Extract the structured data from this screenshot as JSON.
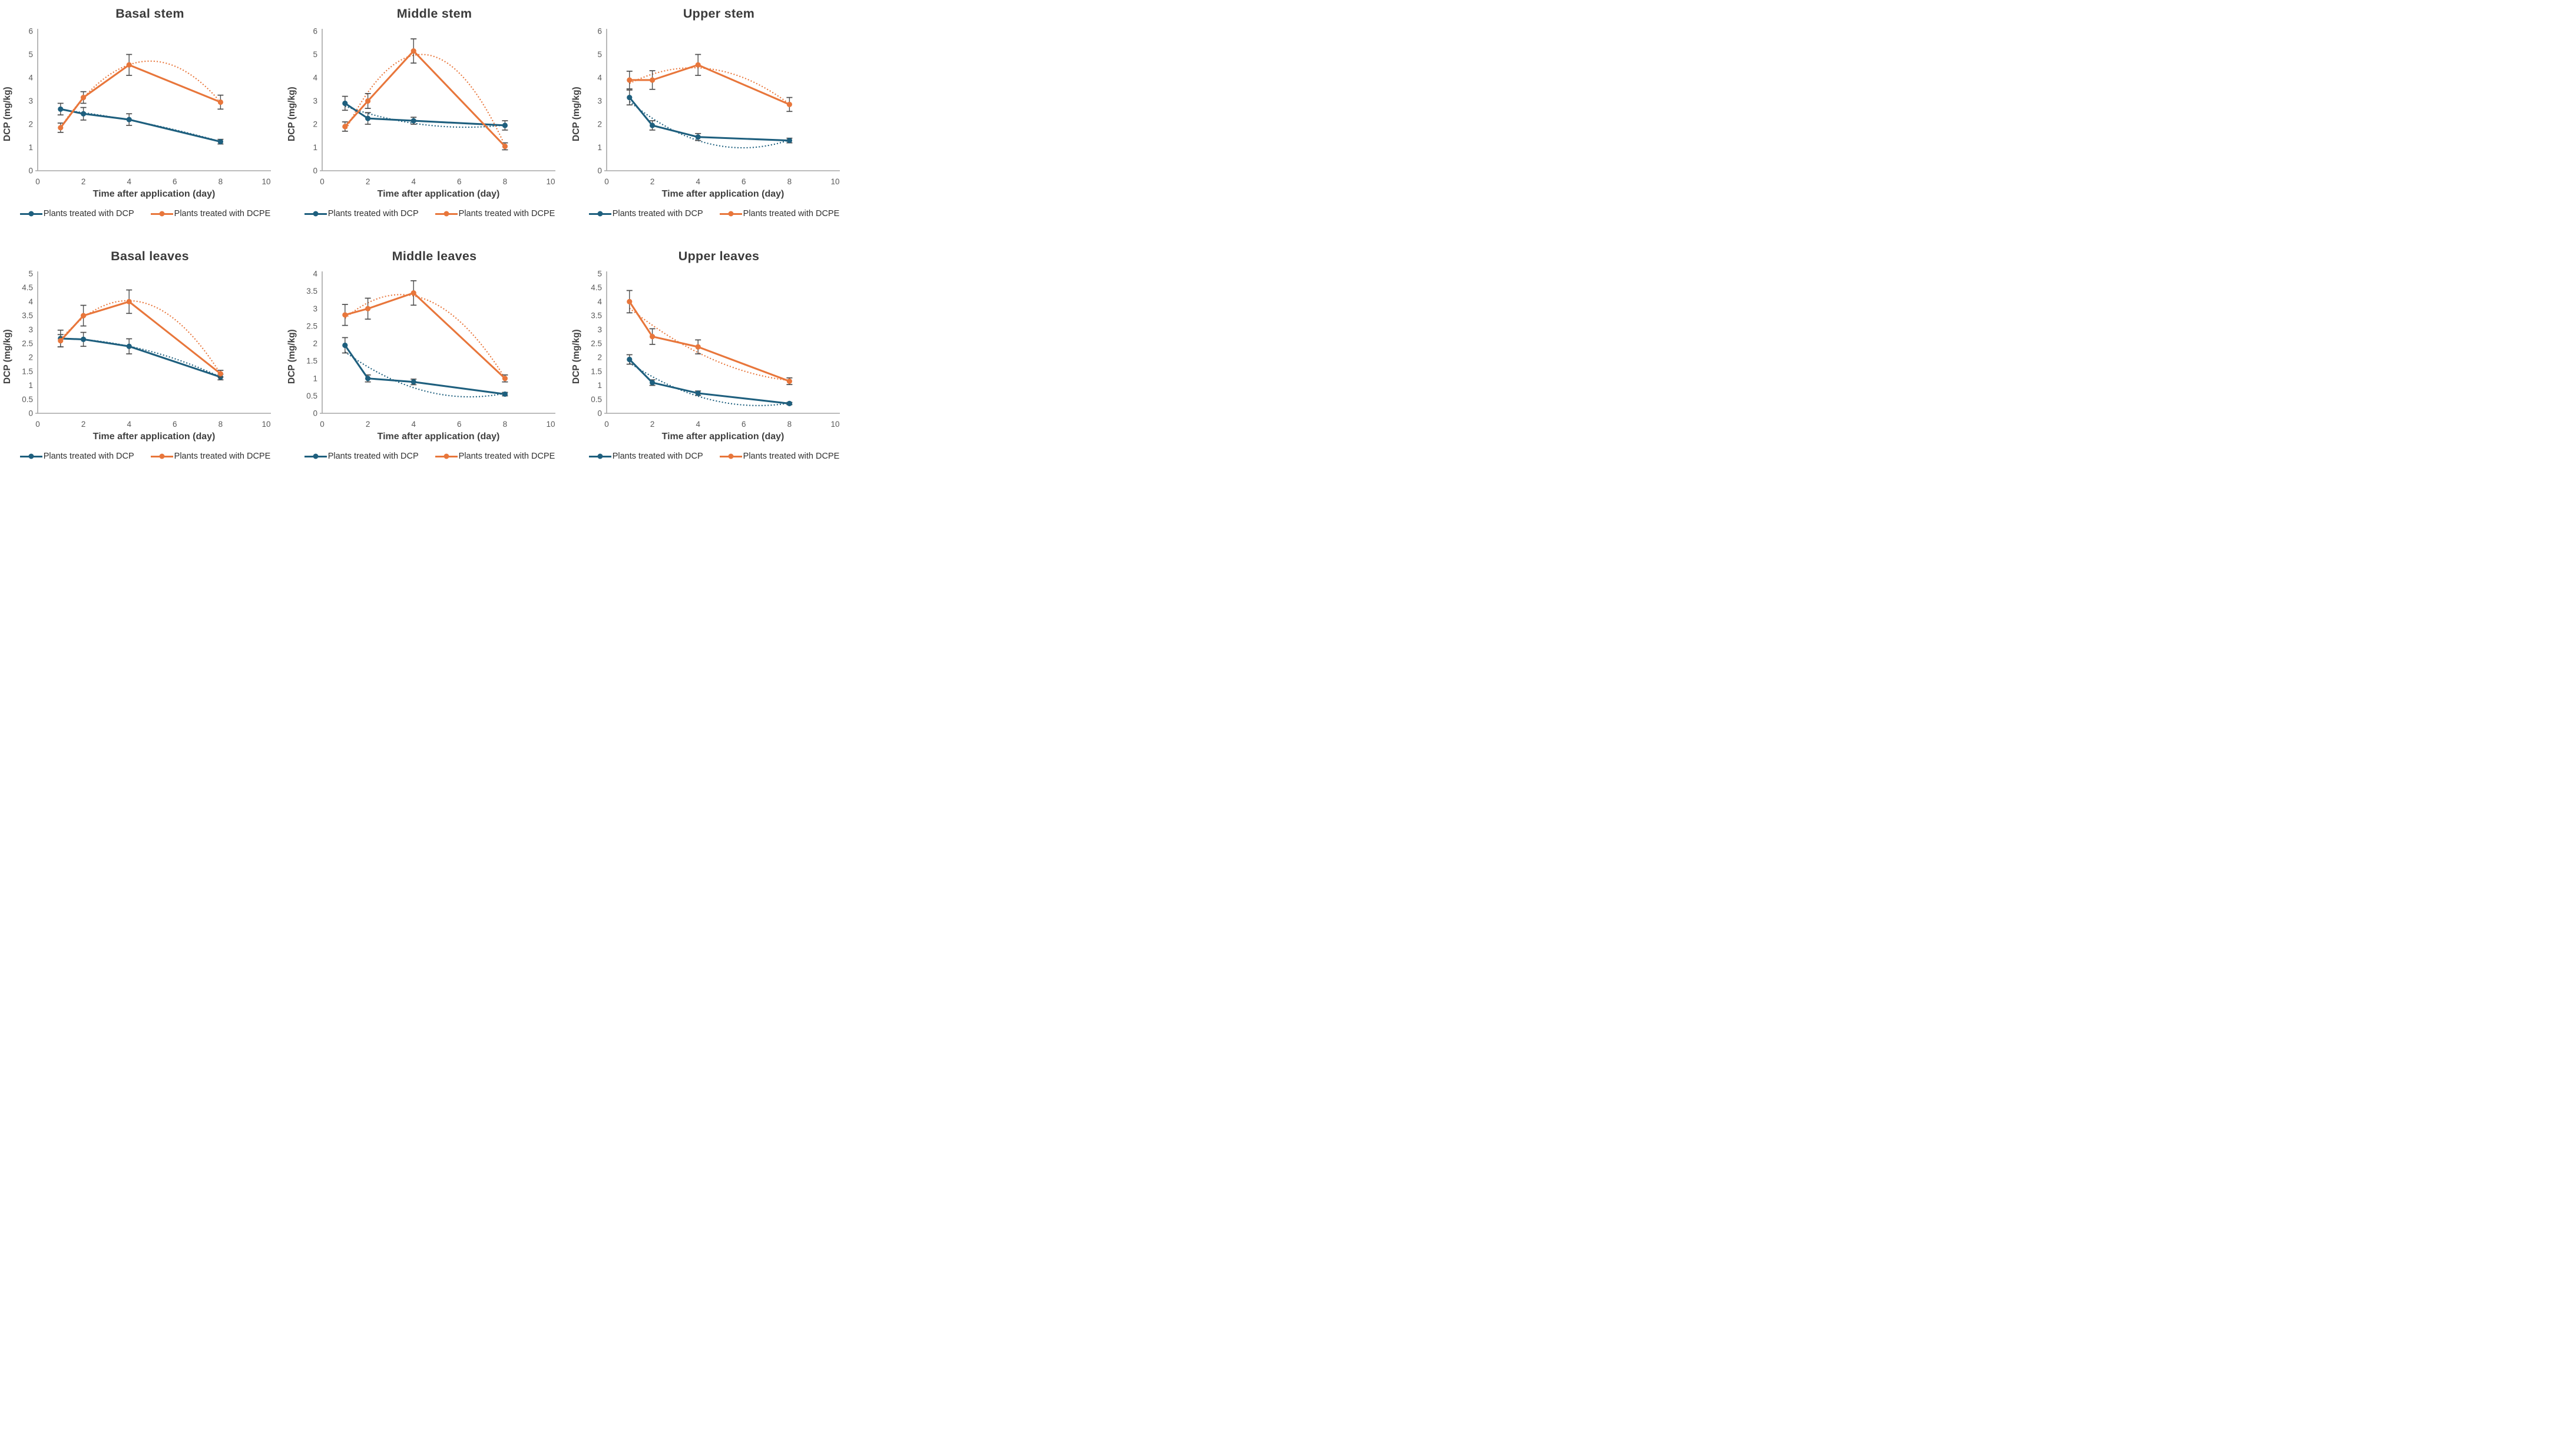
{
  "figure": {
    "background": "#FFFFFF",
    "rows": 2,
    "cols": 3
  },
  "colors": {
    "dcp_series": "#1E5F7E",
    "dcpe_series": "#E8763B",
    "error_bar": "#4D4D4D",
    "axis_line": "#A6A6A6",
    "tick_label": "#595959",
    "title_text": "#3B3B3B"
  },
  "axis_titles": {
    "x": "Time after application (day)",
    "y": "DCP (mg/kg)"
  },
  "chart_data": [
    {
      "type": "line",
      "title": "Basal stem",
      "xlabel": "Time after application (day)",
      "ylabel": "DCP (mg/kg)",
      "xlim": [
        0,
        10
      ],
      "xticks": [
        0,
        2,
        4,
        6,
        8,
        10
      ],
      "ylim": [
        0,
        6
      ],
      "ytick_step": 1,
      "grid": false,
      "legend_position": "bottom",
      "trendline": "quadratic-dotted",
      "x": [
        1,
        2,
        4,
        8
      ],
      "series": [
        {
          "name": "Plants treated with DCP",
          "color_key": "dcp",
          "values": [
            2.65,
            2.45,
            2.2,
            1.25
          ],
          "errors": [
            0.25,
            0.27,
            0.25,
            0.1
          ]
        },
        {
          "name": "Plants treated with DCPE",
          "color_key": "dcpe",
          "values": [
            1.85,
            3.15,
            4.55,
            2.95
          ],
          "errors": [
            0.2,
            0.25,
            0.45,
            0.3
          ]
        }
      ]
    },
    {
      "type": "line",
      "title": "Middle stem",
      "xlabel": "Time after application (day)",
      "ylabel": "DCP (mg/kg)",
      "xlim": [
        0,
        10
      ],
      "xticks": [
        0,
        2,
        4,
        6,
        8,
        10
      ],
      "ylim": [
        0,
        6
      ],
      "ytick_step": 1,
      "grid": false,
      "legend_position": "bottom",
      "trendline": "quadratic-dotted",
      "x": [
        1,
        2,
        4,
        8
      ],
      "series": [
        {
          "name": "Plants treated with DCP",
          "color_key": "dcp",
          "values": [
            2.9,
            2.25,
            2.15,
            1.95
          ],
          "errors": [
            0.3,
            0.25,
            0.15,
            0.2
          ]
        },
        {
          "name": "Plants treated with DCPE",
          "color_key": "dcpe",
          "values": [
            1.9,
            3.0,
            5.15,
            1.05
          ],
          "errors": [
            0.2,
            0.32,
            0.52,
            0.15
          ]
        }
      ]
    },
    {
      "type": "line",
      "title": "Upper stem",
      "xlabel": "Time after application (day)",
      "ylabel": "DCP (mg/kg)",
      "xlim": [
        0,
        10
      ],
      "xticks": [
        0,
        2,
        4,
        6,
        8,
        10
      ],
      "ylim": [
        0,
        6
      ],
      "ytick_step": 1,
      "grid": false,
      "legend_position": "bottom",
      "trendline": "quadratic-dotted",
      "x": [
        1,
        2,
        4,
        8
      ],
      "series": [
        {
          "name": "Plants treated with DCP",
          "color_key": "dcp",
          "values": [
            3.15,
            1.95,
            1.45,
            1.3
          ],
          "errors": [
            0.32,
            0.2,
            0.15,
            0.1
          ]
        },
        {
          "name": "Plants treated with DCPE",
          "color_key": "dcpe",
          "values": [
            3.9,
            3.9,
            4.55,
            2.85
          ],
          "errors": [
            0.38,
            0.4,
            0.45,
            0.3
          ]
        }
      ]
    },
    {
      "type": "line",
      "title": "Basal leaves",
      "xlabel": "Time after application (day)",
      "ylabel": "DCP (mg/kg)",
      "xlim": [
        0,
        10
      ],
      "xticks": [
        0,
        2,
        4,
        6,
        8,
        10
      ],
      "ylim": [
        0,
        5
      ],
      "ytick_step": 0.5,
      "grid": false,
      "legend_position": "bottom",
      "trendline": "quadratic-dotted",
      "x": [
        1,
        2,
        4,
        8
      ],
      "series": [
        {
          "name": "Plants treated with DCP",
          "color_key": "dcp",
          "values": [
            2.68,
            2.65,
            2.4,
            1.3
          ],
          "errors": [
            0.3,
            0.25,
            0.27,
            0.1
          ]
        },
        {
          "name": "Plants treated with DCPE",
          "color_key": "dcpe",
          "values": [
            2.6,
            3.5,
            4.0,
            1.42
          ],
          "errors": [
            0.22,
            0.37,
            0.42,
            0.12
          ]
        }
      ]
    },
    {
      "type": "line",
      "title": "Middle leaves",
      "xlabel": "Time after application (day)",
      "ylabel": "DCP (mg/kg)",
      "xlim": [
        0,
        10
      ],
      "xticks": [
        0,
        2,
        4,
        6,
        8,
        10
      ],
      "ylim": [
        0,
        4
      ],
      "ytick_step": 0.5,
      "grid": false,
      "legend_position": "bottom",
      "trendline": "quadratic-dotted",
      "x": [
        1,
        2,
        4,
        8
      ],
      "series": [
        {
          "name": "Plants treated with DCP",
          "color_key": "dcp",
          "values": [
            1.95,
            1.0,
            0.9,
            0.55
          ],
          "errors": [
            0.22,
            0.1,
            0.08,
            0.05
          ]
        },
        {
          "name": "Plants treated with DCPE",
          "color_key": "dcpe",
          "values": [
            2.82,
            3.0,
            3.45,
            1.0
          ],
          "errors": [
            0.3,
            0.3,
            0.35,
            0.1
          ]
        }
      ]
    },
    {
      "type": "line",
      "title": "Upper leaves",
      "xlabel": "Time after application (day)",
      "ylabel": "DCP (mg/kg)",
      "xlim": [
        0,
        10
      ],
      "xticks": [
        0,
        2,
        4,
        6,
        8,
        10
      ],
      "ylim": [
        0,
        5
      ],
      "ytick_step": 0.5,
      "grid": false,
      "legend_position": "bottom",
      "trendline": "quadratic-dotted",
      "x": [
        1,
        2,
        4,
        8
      ],
      "series": [
        {
          "name": "Plants treated with DCP",
          "color_key": "dcp",
          "values": [
            1.93,
            1.1,
            0.72,
            0.35
          ],
          "errors": [
            0.17,
            0.1,
            0.08,
            0.04
          ]
        },
        {
          "name": "Plants treated with DCPE",
          "color_key": "dcpe",
          "values": [
            4.0,
            2.75,
            2.38,
            1.15
          ],
          "errors": [
            0.4,
            0.28,
            0.25,
            0.12
          ]
        }
      ]
    }
  ]
}
